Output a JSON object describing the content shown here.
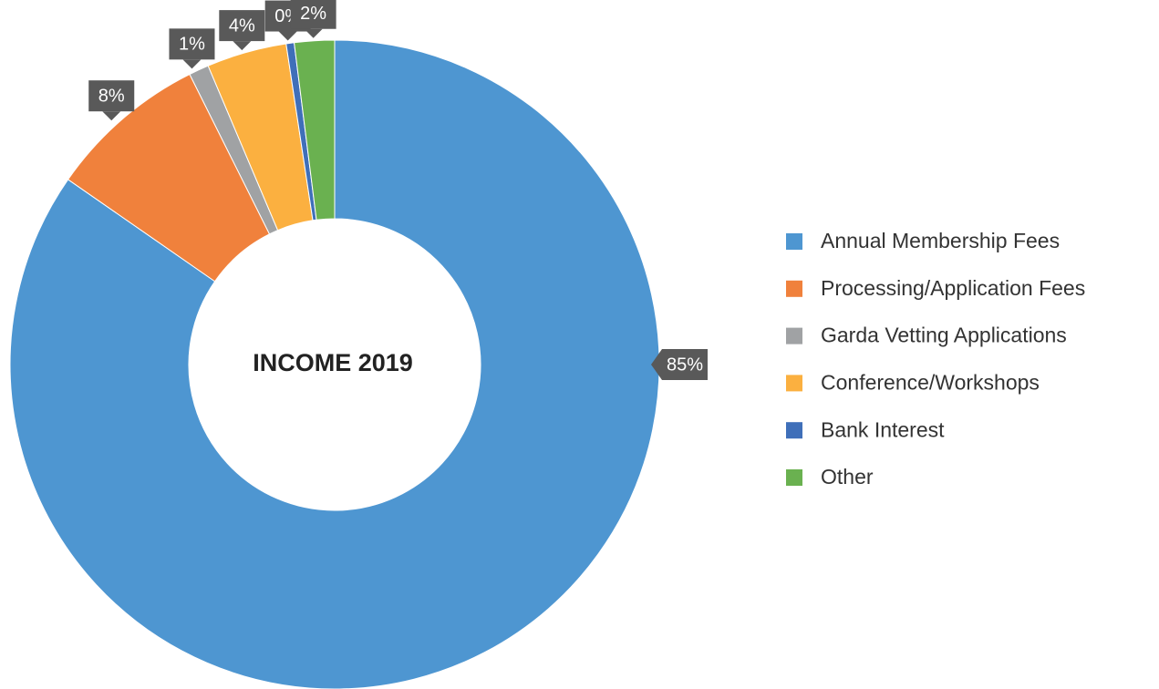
{
  "chart_data": {
    "type": "donut",
    "title": "INCOME 2019",
    "categories": [
      "Annual Membership Fees",
      "Processing/Application Fees",
      "Garda Vetting Applications",
      "Conference/Workshops",
      "Bank Interest",
      "Other"
    ],
    "values": [
      85,
      8,
      1,
      4,
      0.4,
      2
    ],
    "value_labels": [
      "85%",
      "8%",
      "1%",
      "4%",
      "0%",
      "2%"
    ],
    "colors": [
      "#4e96d1",
      "#f0813c",
      "#a0a2a4",
      "#fbb040",
      "#3f6fb9",
      "#6ab150"
    ],
    "legend": "right"
  }
}
